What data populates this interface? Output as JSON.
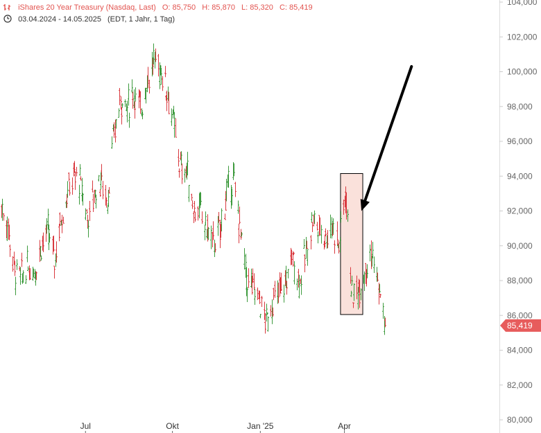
{
  "header": {
    "line1": {
      "title": "iShares 20 Year Treasury (Nasdaq, Last)",
      "open": "O: 85,750",
      "high": "H: 85,870",
      "low": "L: 85,320",
      "close": "C: 85,419"
    },
    "line2": {
      "range": "03.04.2024 - 14.05.2025",
      "settings": "(EDT, 1 Jahr, 1 Tag)"
    }
  },
  "colors": {
    "up": "#3d9a3d",
    "down": "#d9393f",
    "price_tag": "#e75c5c",
    "highlight_fill": "#f9d9d2",
    "arrow": "#000000"
  },
  "chart_data": {
    "type": "ohlc",
    "y_ticks": [
      "80,000",
      "82,000",
      "84,000",
      "86,000",
      "88,000",
      "90,000",
      "92,000",
      "94,000",
      "96,000",
      "98,000",
      "100,000",
      "102,000",
      "104,000"
    ],
    "x_ticks": [
      "Jul",
      "Okt",
      "Jan '25",
      "Apr"
    ],
    "last_price_label": "85,419",
    "ylim": [
      80,
      104
    ],
    "series": [
      {
        "d": "2024-04-03",
        "c": 92.2
      },
      {
        "d": "2024-04-10",
        "c": 91.0
      },
      {
        "d": "2024-04-17",
        "c": 88.5
      },
      {
        "d": "2024-04-24",
        "c": 88.2
      },
      {
        "d": "2024-05-01",
        "c": 88.8
      },
      {
        "d": "2024-05-08",
        "c": 88.6
      },
      {
        "d": "2024-05-15",
        "c": 90.1
      },
      {
        "d": "2024-05-22",
        "c": 90.8
      },
      {
        "d": "2024-05-29",
        "c": 89.2
      },
      {
        "d": "2024-06-05",
        "c": 91.6
      },
      {
        "d": "2024-06-12",
        "c": 93.2
      },
      {
        "d": "2024-06-19",
        "c": 94.0
      },
      {
        "d": "2024-06-26",
        "c": 93.5
      },
      {
        "d": "2024-07-03",
        "c": 91.5
      },
      {
        "d": "2024-07-10",
        "c": 93.0
      },
      {
        "d": "2024-07-17",
        "c": 93.8
      },
      {
        "d": "2024-07-24",
        "c": 92.6
      },
      {
        "d": "2024-07-31",
        "c": 96.4
      },
      {
        "d": "2024-08-07",
        "c": 98.5
      },
      {
        "d": "2024-08-14",
        "c": 97.9
      },
      {
        "d": "2024-08-21",
        "c": 98.8
      },
      {
        "d": "2024-08-28",
        "c": 97.8
      },
      {
        "d": "2024-09-04",
        "c": 99.5
      },
      {
        "d": "2024-09-11",
        "c": 100.6
      },
      {
        "d": "2024-09-18",
        "c": 100.2
      },
      {
        "d": "2024-09-25",
        "c": 99.0
      },
      {
        "d": "2024-10-02",
        "c": 97.0
      },
      {
        "d": "2024-10-09",
        "c": 94.5
      },
      {
        "d": "2024-10-16",
        "c": 94.3
      },
      {
        "d": "2024-10-23",
        "c": 92.2
      },
      {
        "d": "2024-10-30",
        "c": 92.0
      },
      {
        "d": "2024-11-06",
        "c": 91.0
      },
      {
        "d": "2024-11-13",
        "c": 90.2
      },
      {
        "d": "2024-11-20",
        "c": 90.8
      },
      {
        "d": "2024-11-27",
        "c": 93.0
      },
      {
        "d": "2024-12-04",
        "c": 93.8
      },
      {
        "d": "2024-12-11",
        "c": 91.2
      },
      {
        "d": "2024-12-18",
        "c": 88.0
      },
      {
        "d": "2024-12-25",
        "c": 87.6
      },
      {
        "d": "2025-01-01",
        "c": 86.9
      },
      {
        "d": "2025-01-08",
        "c": 85.6
      },
      {
        "d": "2025-01-15",
        "c": 86.8
      },
      {
        "d": "2025-01-22",
        "c": 87.3
      },
      {
        "d": "2025-01-29",
        "c": 88.0
      },
      {
        "d": "2025-02-05",
        "c": 89.4
      },
      {
        "d": "2025-02-12",
        "c": 88.0
      },
      {
        "d": "2025-02-19",
        "c": 89.4
      },
      {
        "d": "2025-02-26",
        "c": 91.6
      },
      {
        "d": "2025-03-05",
        "c": 91.0
      },
      {
        "d": "2025-03-12",
        "c": 90.6
      },
      {
        "d": "2025-03-19",
        "c": 91.2
      },
      {
        "d": "2025-03-26",
        "c": 90.0
      },
      {
        "d": "2025-04-02",
        "c": 93.2
      },
      {
        "d": "2025-04-09",
        "c": 87.0
      },
      {
        "d": "2025-04-16",
        "c": 87.6
      },
      {
        "d": "2025-04-23",
        "c": 88.8
      },
      {
        "d": "2025-04-30",
        "c": 89.6
      },
      {
        "d": "2025-05-07",
        "c": 87.6
      },
      {
        "d": "2025-05-14",
        "c": 85.42
      }
    ]
  },
  "annotations": {
    "highlight_box": {
      "from": "2025-04-02",
      "to": "2025-04-16",
      "y_low": 86.05,
      "y_high": 94.15
    },
    "arrow": {
      "from_date": "2025-06-11",
      "from_y": 100.3,
      "to_date": "2025-04-19",
      "to_y": 92.0
    }
  }
}
